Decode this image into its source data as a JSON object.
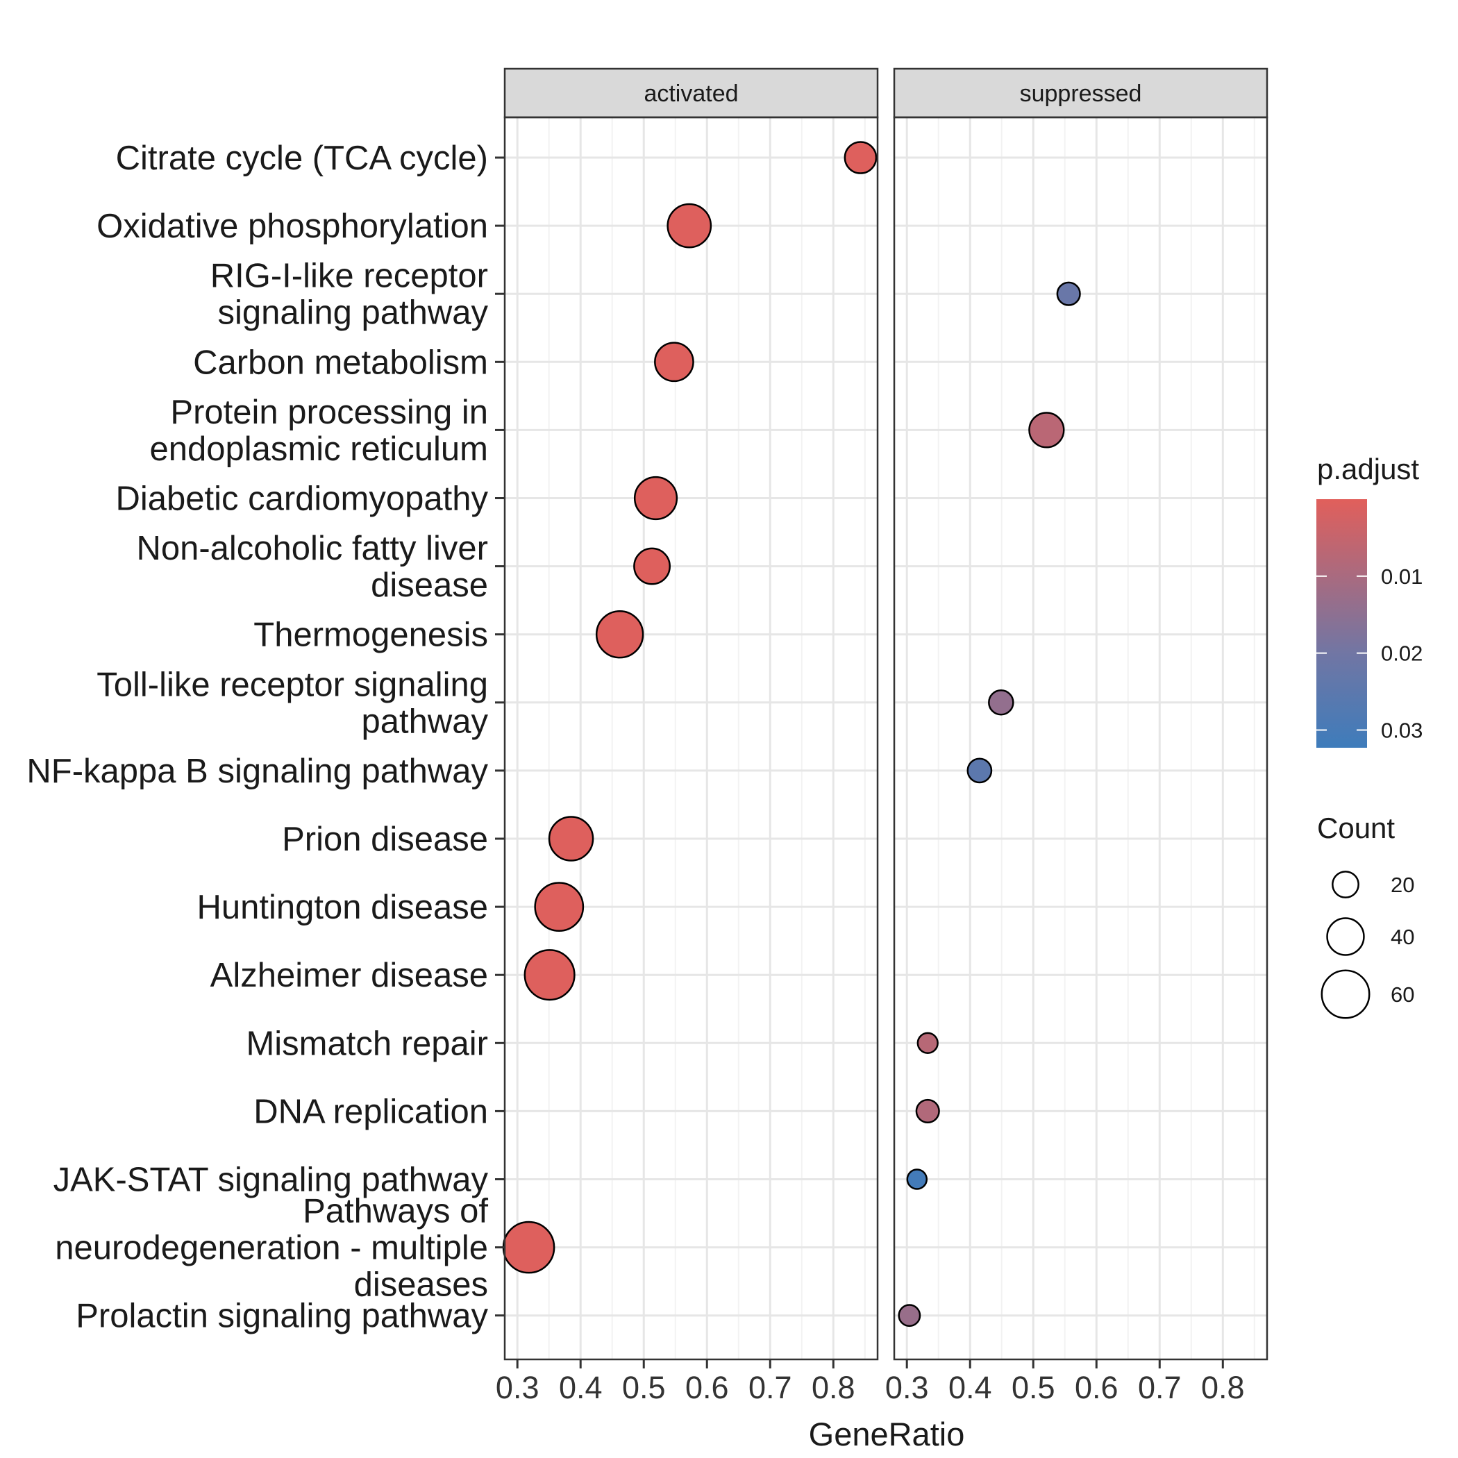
{
  "chart_data": {
    "type": "scatter",
    "xlabel": "GeneRatio",
    "xlim": [
      0.28,
      0.87
    ],
    "xticks": [
      0.3,
      0.4,
      0.5,
      0.6,
      0.7,
      0.8
    ],
    "xtick_labels": [
      "0.3",
      "0.4",
      "0.5",
      "0.6",
      "0.7",
      "0.8"
    ],
    "panels": [
      "activated",
      "suppressed"
    ],
    "categories": [
      [
        "Citrate cycle (TCA cycle)"
      ],
      [
        "Oxidative phosphorylation"
      ],
      [
        "RIG-I-like receptor",
        "signaling pathway"
      ],
      [
        "Carbon metabolism"
      ],
      [
        "Protein processing in",
        "endoplasmic reticulum"
      ],
      [
        "Diabetic cardiomyopathy"
      ],
      [
        "Non-alcoholic fatty liver",
        "disease"
      ],
      [
        "Thermogenesis"
      ],
      [
        "Toll-like receptor signaling",
        "pathway"
      ],
      [
        "NF-kappa B signaling pathway"
      ],
      [
        "Prion disease"
      ],
      [
        "Huntington disease"
      ],
      [
        "Alzheimer disease"
      ],
      [
        "Mismatch repair"
      ],
      [
        "DNA replication"
      ],
      [
        "JAK-STAT signaling pathway"
      ],
      [
        "Pathways of",
        "neurodegeneration - multiple",
        "diseases"
      ],
      [
        "Prolactin signaling pathway"
      ]
    ],
    "points": [
      {
        "panel": "activated",
        "row": 0,
        "x": 0.843,
        "count": 30,
        "p_adjust": 0.0005
      },
      {
        "panel": "activated",
        "row": 1,
        "x": 0.572,
        "count": 52,
        "p_adjust": 0.0005
      },
      {
        "panel": "activated",
        "row": 3,
        "x": 0.548,
        "count": 43,
        "p_adjust": 0.0005
      },
      {
        "panel": "activated",
        "row": 5,
        "x": 0.519,
        "count": 50,
        "p_adjust": 0.0005
      },
      {
        "panel": "activated",
        "row": 6,
        "x": 0.513,
        "count": 38,
        "p_adjust": 0.0005
      },
      {
        "panel": "activated",
        "row": 7,
        "x": 0.462,
        "count": 58,
        "p_adjust": 0.0005
      },
      {
        "panel": "activated",
        "row": 10,
        "x": 0.385,
        "count": 53,
        "p_adjust": 0.0005
      },
      {
        "panel": "activated",
        "row": 11,
        "x": 0.366,
        "count": 61,
        "p_adjust": 0.0005
      },
      {
        "panel": "activated",
        "row": 12,
        "x": 0.351,
        "count": 64,
        "p_adjust": 0.0005
      },
      {
        "panel": "activated",
        "row": 16,
        "x": 0.318,
        "count": 66,
        "p_adjust": 0.0005
      },
      {
        "panel": "suppressed",
        "row": 2,
        "x": 0.556,
        "count": 14,
        "p_adjust": 0.022
      },
      {
        "panel": "suppressed",
        "row": 4,
        "x": 0.521,
        "count": 36,
        "p_adjust": 0.007
      },
      {
        "panel": "suppressed",
        "row": 8,
        "x": 0.449,
        "count": 17,
        "p_adjust": 0.014
      },
      {
        "panel": "suppressed",
        "row": 9,
        "x": 0.415,
        "count": 16,
        "p_adjust": 0.025
      },
      {
        "panel": "suppressed",
        "row": 13,
        "x": 0.333,
        "count": 9,
        "p_adjust": 0.0075
      },
      {
        "panel": "suppressed",
        "row": 14,
        "x": 0.333,
        "count": 14,
        "p_adjust": 0.0085
      },
      {
        "panel": "suppressed",
        "row": 15,
        "x": 0.316,
        "count": 8,
        "p_adjust": 0.031
      },
      {
        "panel": "suppressed",
        "row": 17,
        "x": 0.304,
        "count": 11,
        "p_adjust": 0.013
      }
    ],
    "color_legend": {
      "title": "p.adjust",
      "ticks": [
        0.01,
        0.02,
        0.03
      ],
      "tick_labels": [
        "0.01",
        "0.02",
        "0.03"
      ],
      "range": [
        0,
        0.0323
      ],
      "colors": [
        "#e15f5b",
        "#7176a4",
        "#3e7cbb"
      ]
    },
    "size_legend": {
      "title": "Count",
      "values": [
        20,
        40,
        60
      ],
      "labels": [
        "20",
        "40",
        "60"
      ]
    },
    "grid": true,
    "legend_position": "right"
  }
}
